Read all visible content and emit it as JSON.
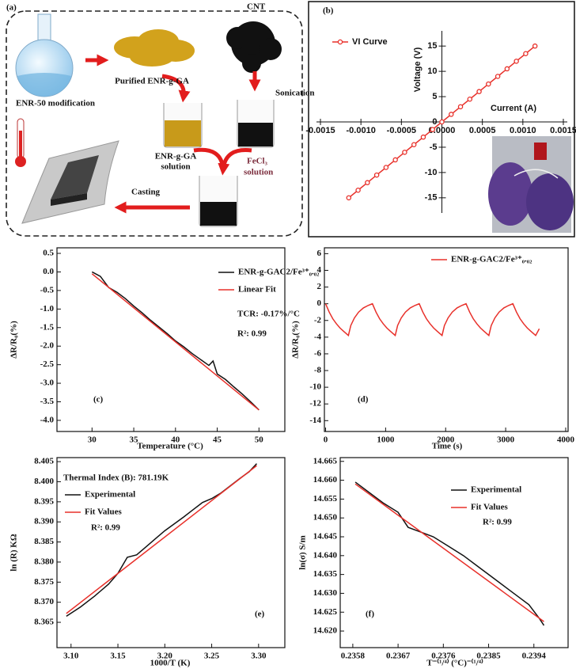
{
  "diagram": {
    "panel_label": "(a)",
    "cnt": "CNT",
    "purified": "Purified ENR-g-GA",
    "modification": "ENR-50 modification",
    "sonication": "Sonication",
    "solution_a": [
      "ENR-g-GA",
      "solution"
    ],
    "solution_b": [
      "FeCl₃",
      "solution"
    ],
    "casting": "Casting"
  },
  "chart_data": [
    {
      "type": "line",
      "panel_label": "(b)",
      "axes": "origin",
      "xlabel": "Current (A)",
      "ylabel": "Voltage (V)",
      "legend": "upper left",
      "series": [
        {
          "name": "VI Curve",
          "color": "#e8302a",
          "markers": true,
          "x": [
            -0.00115,
            -0.001035,
            -0.00092,
            -0.000805,
            -0.00069,
            -0.000575,
            -0.00046,
            -0.000345,
            -0.00023,
            -0.000115,
            0,
            0.000115,
            0.00023,
            0.000345,
            0.00046,
            0.000575,
            0.00069,
            0.000805,
            0.00092,
            0.001035,
            0.00115
          ],
          "values": [
            -15,
            -13.5,
            -12,
            -10.5,
            -9,
            -7.5,
            -6,
            -4.5,
            -3,
            -1.5,
            0,
            1.5,
            3,
            4.5,
            6,
            7.5,
            9,
            10.5,
            12,
            13.5,
            15
          ]
        }
      ],
      "xlim": [
        -0.0015,
        0.0015
      ],
      "xticks": [
        -0.0015,
        {
          "value": -0.001,
          "label": "-0.0010"
        },
        -0.0005,
        {
          "value": 0,
          "label": "0.0000"
        },
        0.0005,
        {
          "value": 0.001,
          "label": "0.0010"
        },
        0.0015
      ],
      "ylim": [
        -18,
        18
      ],
      "yticks": [
        -15,
        -10,
        -5,
        0,
        5,
        10,
        15
      ]
    },
    {
      "type": "line",
      "panel_label": "(c)",
      "axes": "box",
      "xlabel": "Temperature (°C)",
      "ylabel": "ΔR/R₀(%)",
      "legend": "upper right",
      "annotations": [
        "TCR: -0.17%/°C",
        "R²: 0.99"
      ],
      "series": [
        {
          "name": "ENR-g-GAC2/Fe³⁺₀.₀₂",
          "color": "#111111",
          "x": [
            30,
            31,
            32,
            33,
            34,
            35,
            36,
            37,
            38,
            39,
            40,
            41,
            42,
            43,
            44,
            44.5,
            45,
            46,
            47,
            48,
            49,
            50
          ],
          "values": [
            0.0,
            -0.12,
            -0.42,
            -0.55,
            -0.72,
            -0.92,
            -1.1,
            -1.3,
            -1.48,
            -1.66,
            -1.86,
            -2.02,
            -2.2,
            -2.36,
            -2.52,
            -2.4,
            -2.75,
            -2.9,
            -3.1,
            -3.29,
            -3.5,
            -3.72
          ]
        },
        {
          "name": "Linear Fit",
          "color": "#e8302a",
          "x": [
            30,
            50
          ],
          "values": [
            -0.05,
            -3.72
          ]
        }
      ],
      "xlim": [
        25.8,
        53.1
      ],
      "xticks": [
        30,
        35,
        40,
        45,
        50
      ],
      "ylim": [
        -4.3,
        0.65
      ],
      "yticks": [
        0.5,
        {
          "value": 0,
          "label": "0.0"
        },
        -0.5,
        {
          "value": -1,
          "label": "-1.0"
        },
        -1.5,
        {
          "value": -2,
          "label": "-2.0"
        },
        -2.5,
        {
          "value": -3,
          "label": "-3.0"
        },
        -3.5,
        {
          "value": -4,
          "label": "-4.0"
        }
      ]
    },
    {
      "type": "line",
      "panel_label": "(d)",
      "axes": "box",
      "xlabel": "Time (s)",
      "ylabel": "ΔR/R₀(%)",
      "legend": "upper right",
      "series": [
        {
          "name": "ENR-g-GAC2/Fe³⁺₀.₀₂",
          "color": "#e8302a",
          "x": [
            0,
            60,
            120,
            180,
            240,
            300,
            380,
            420,
            480,
            550,
            630,
            710,
            780,
            840,
            900,
            960,
            1020,
            1080,
            1160,
            1200,
            1260,
            1330,
            1410,
            1490,
            1560,
            1620,
            1680,
            1740,
            1800,
            1860,
            1940,
            1980,
            2040,
            2110,
            2190,
            2270,
            2340,
            2400,
            2460,
            2520,
            2580,
            2640,
            2720,
            2760,
            2820,
            2890,
            2970,
            3050,
            3120,
            3180,
            3240,
            3300,
            3360,
            3420,
            3500,
            3560
          ],
          "values": [
            0,
            -1.0,
            -1.8,
            -2.4,
            -2.9,
            -3.3,
            -3.8,
            -2.6,
            -1.7,
            -1.0,
            -0.5,
            -0.2,
            0,
            -1.0,
            -1.8,
            -2.4,
            -2.9,
            -3.3,
            -3.8,
            -2.6,
            -1.7,
            -1.0,
            -0.5,
            -0.2,
            0,
            -1.0,
            -1.8,
            -2.4,
            -2.9,
            -3.3,
            -3.8,
            -2.6,
            -1.7,
            -1.0,
            -0.5,
            -0.2,
            0,
            -1.0,
            -1.8,
            -2.4,
            -2.9,
            -3.3,
            -3.8,
            -2.6,
            -1.7,
            -1.0,
            -0.5,
            -0.2,
            0,
            -1.0,
            -1.8,
            -2.4,
            -2.9,
            -3.3,
            -3.8,
            -3.0
          ]
        }
      ],
      "xlim": [
        -20,
        4040
      ],
      "xticks": [
        0,
        1000,
        2000,
        3000,
        4000
      ],
      "ylim": [
        -15.3,
        6.7
      ],
      "yticks": [
        6,
        4,
        2,
        0,
        -2,
        -4,
        -6,
        -8,
        -10,
        -12,
        -14
      ]
    },
    {
      "type": "line",
      "panel_label": "(e)",
      "axes": "box",
      "xlabel": "1000/T (K)",
      "ylabel": "ln (R) KΩ",
      "legend": "upper left",
      "annotations": [
        "Thermal Index (B): 781.19K",
        "R²: 0.99"
      ],
      "series": [
        {
          "name": "Experimental",
          "color": "#111111",
          "x": [
            3.095,
            3.11,
            3.125,
            3.14,
            3.15,
            3.16,
            3.17,
            3.18,
            3.19,
            3.2,
            3.21,
            3.22,
            3.23,
            3.24,
            3.25,
            3.26,
            3.27,
            3.28,
            3.29,
            3.298
          ],
          "values": [
            8.3665,
            8.3688,
            8.3715,
            8.3745,
            8.3772,
            8.3812,
            8.3818,
            8.3838,
            8.3858,
            8.3878,
            8.3895,
            8.3912,
            8.393,
            8.3948,
            8.3958,
            8.3972,
            8.399,
            8.4008,
            8.4025,
            8.4045
          ]
        },
        {
          "name": "Fit Values",
          "color": "#e8302a",
          "x": [
            3.095,
            3.298
          ],
          "values": [
            8.3672,
            8.404
          ]
        }
      ],
      "xlim": [
        3.085,
        3.328
      ],
      "xticks": [
        {
          "value": 3.1,
          "label": "3.10"
        },
        3.15,
        {
          "value": 3.2,
          "label": "3.20"
        },
        3.25,
        {
          "value": 3.3,
          "label": "3.30"
        }
      ],
      "ylim": [
        8.3587,
        8.406
      ],
      "yticks": [
        8.365,
        {
          "value": 8.37,
          "label": "8.370"
        },
        8.375,
        {
          "value": 8.38,
          "label": "8.380"
        },
        8.385,
        {
          "value": 8.39,
          "label": "8.390"
        },
        8.395,
        {
          "value": 8.4,
          "label": "8.400"
        },
        8.405
      ]
    },
    {
      "type": "line",
      "panel_label": "(f)",
      "axes": "box",
      "xlabel": "T⁻⁽¹/⁴⁾ (°C)⁻⁽¹/⁴⁾",
      "ylabel": "ln(σ) S/m",
      "legend": "upper right",
      "annotations": [
        "R²: 0.99"
      ],
      "series": [
        {
          "name": "Experimental",
          "color": "#111111",
          "x": [
            0.23585,
            0.2361,
            0.2364,
            0.2367,
            0.2369,
            0.2371,
            0.2374,
            0.2377,
            0.238,
            0.2383,
            0.2386,
            0.2389,
            0.2391,
            0.2393,
            0.2395,
            0.2396
          ],
          "values": [
            14.6595,
            14.657,
            14.654,
            14.6515,
            14.6475,
            14.6465,
            14.645,
            14.6425,
            14.64,
            14.637,
            14.634,
            14.631,
            14.629,
            14.627,
            14.6235,
            14.6215
          ]
        },
        {
          "name": "Fit Values",
          "color": "#e8302a",
          "x": [
            0.23585,
            0.2396
          ],
          "values": [
            14.659,
            14.6225
          ]
        }
      ],
      "xlim": [
        0.23555,
        0.24008
      ],
      "xticks": [
        0.2358,
        0.2367,
        0.2376,
        0.2385,
        0.2394
      ],
      "ylim": [
        14.6156,
        14.666
      ],
      "yticks": [
        {
          "value": 14.62,
          "label": "14.620"
        },
        14.625,
        {
          "value": 14.63,
          "label": "14.630"
        },
        14.635,
        {
          "value": 14.64,
          "label": "14.640"
        },
        14.645,
        {
          "value": 14.65,
          "label": "14.650"
        },
        14.655,
        {
          "value": 14.66,
          "label": "14.660"
        },
        14.665
      ]
    }
  ]
}
